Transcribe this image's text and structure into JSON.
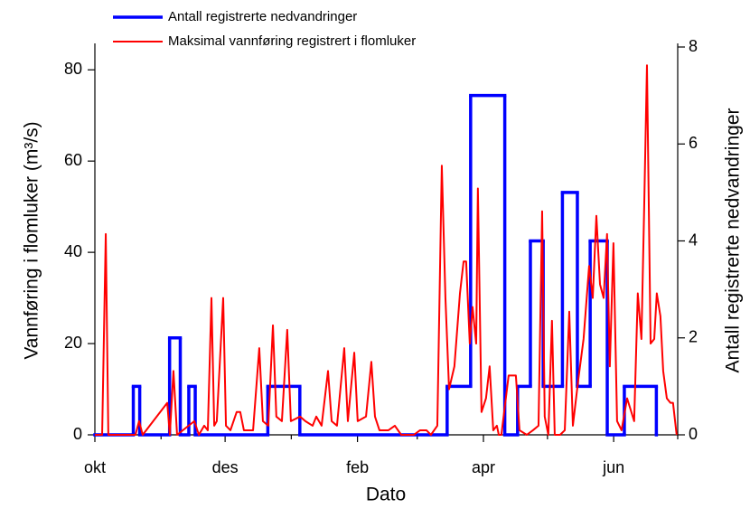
{
  "chart_data": {
    "type": "line",
    "xlabel": "Dato",
    "ylabel": "Vannføring i flomluker (m³/s)",
    "y2label": "Antall registrerte nedvandringer",
    "xlim": [
      0,
      273
    ],
    "xticks": [
      {
        "value": 0,
        "label": "okt"
      },
      {
        "value": 61,
        "label": "des"
      },
      {
        "value": 123,
        "label": "feb"
      },
      {
        "value": 182,
        "label": "apr"
      },
      {
        "value": 243,
        "label": "jun"
      }
    ],
    "xminorticks": [
      31,
      92,
      151,
      212,
      273
    ],
    "ylim": [
      0,
      85
    ],
    "yticks": [
      0,
      20,
      40,
      60,
      80
    ],
    "y2lim": [
      0,
      8
    ],
    "y2ticks": [
      0,
      2,
      4,
      6,
      8
    ],
    "series": [
      {
        "name": "Antall registrerte nedvandringer",
        "color": "#0000ff",
        "axis": "y2",
        "step": "post",
        "x": [
          0,
          18,
          21,
          35,
          40,
          44,
          47,
          81,
          96,
          165,
          176,
          192,
          198,
          204,
          210,
          219,
          226,
          232,
          240,
          248,
          263
        ],
        "values": [
          0,
          1,
          0,
          2,
          0,
          1,
          0,
          1,
          0,
          1,
          7,
          0,
          1,
          4,
          1,
          5,
          1,
          4,
          0,
          1,
          0
        ]
      },
      {
        "name": "Maksimal vannføring registrert i flomluker",
        "color": "#ff0000",
        "axis": "y",
        "x": [
          0,
          3.4,
          5.1,
          6.3,
          19.0,
          20.7,
          22.4,
          33.9,
          35.1,
          36.8,
          38.5,
          46.6,
          48.7,
          51.2,
          52.9,
          54.6,
          55.9,
          57.1,
          60.1,
          61.4,
          63.5,
          66.4,
          68.1,
          69.8,
          74.1,
          77.0,
          78.7,
          81.2,
          83.4,
          85.0,
          87.6,
          90.1,
          91.8,
          96.1,
          98.6,
          102.0,
          103.7,
          106.2,
          109.2,
          110.9,
          113.4,
          116.8,
          118.5,
          121.5,
          123.1,
          127.0,
          129.5,
          131.2,
          133.3,
          137.5,
          140.5,
          143.5,
          149.4,
          152.3,
          155.3,
          157.4,
          160.4,
          162.5,
          164.2,
          165.9,
          168.4,
          171.0,
          172.7,
          173.9,
          175.6,
          176.9,
          178.6,
          179.4,
          181.1,
          183.2,
          184.9,
          186.6,
          188.3,
          189.2,
          190.4,
          193.8,
          195.9,
          197.2,
          198.9,
          202.3,
          205.2,
          207.8,
          209.5,
          210.7,
          212.4,
          214.1,
          215.4,
          217.9,
          220.1,
          222.2,
          223.9,
          226.4,
          228.9,
          231.5,
          233.2,
          234.9,
          236.6,
          238.3,
          239.9,
          241.2,
          242.9,
          244.6,
          246.7,
          249.3,
          252.6,
          254.3,
          256.0,
          257.3,
          258.6,
          260.3,
          262.0,
          263.2,
          264.9,
          266.2,
          267.9,
          269.6,
          270.8,
          272.5
        ],
        "values": [
          0,
          0,
          44,
          0,
          0,
          3,
          0,
          7,
          0,
          14,
          0,
          3,
          0,
          2,
          1,
          30,
          2,
          3,
          30,
          2,
          1,
          5,
          5,
          1,
          1,
          19,
          3,
          2,
          24,
          4,
          3,
          23,
          3,
          4,
          3,
          2,
          4,
          2,
          14,
          3,
          2,
          19,
          3,
          18,
          3,
          4,
          16,
          4,
          1,
          1,
          2,
          0,
          0,
          1,
          1,
          0,
          2,
          59,
          30,
          10,
          15,
          31,
          38,
          38,
          20,
          28,
          20,
          54,
          5,
          8,
          15,
          1,
          2,
          0,
          0,
          13,
          13,
          13,
          1,
          0,
          1,
          2,
          49,
          4,
          0,
          25,
          0,
          0,
          1,
          27,
          2,
          12,
          21,
          37,
          30,
          48,
          33,
          30,
          44,
          15,
          42,
          3,
          1,
          8,
          3,
          31,
          21,
          50,
          81,
          20,
          21,
          31,
          26,
          14,
          8,
          7,
          7,
          0
        ]
      }
    ]
  }
}
